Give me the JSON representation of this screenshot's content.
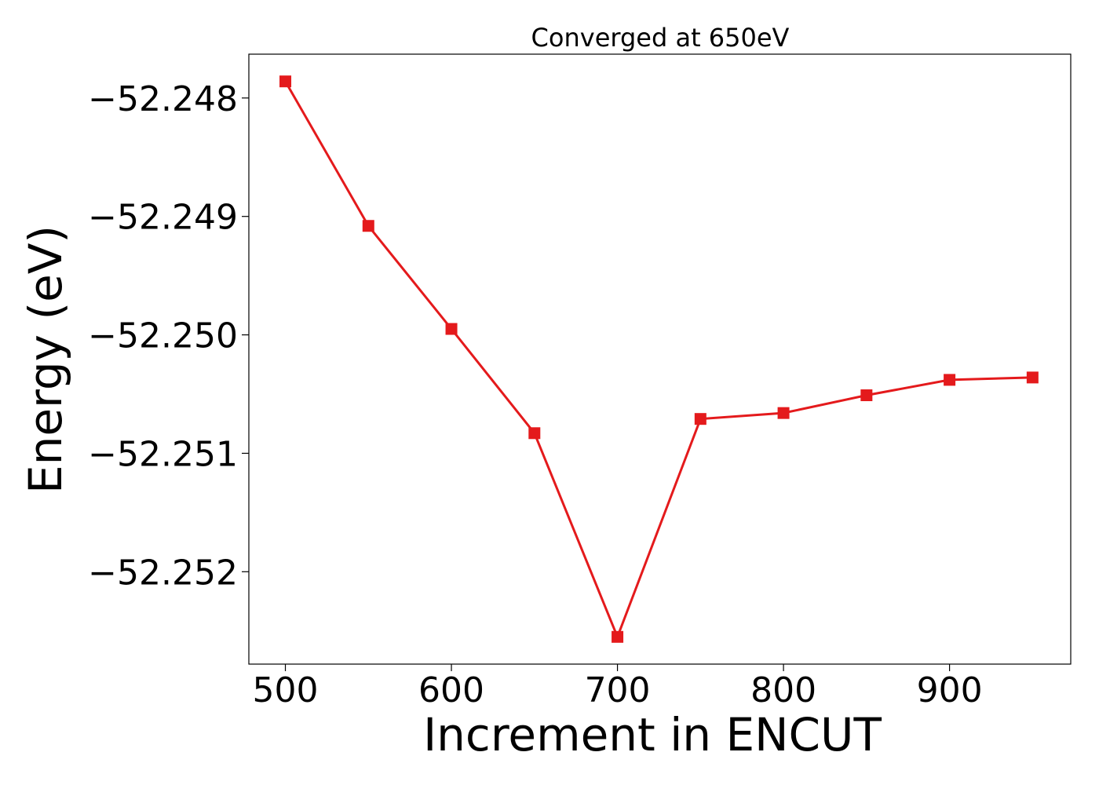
{
  "chart_data": {
    "type": "line",
    "title": "Converged at 650eV",
    "xlabel": "Increment in ENCUT",
    "ylabel": "Energy (eV)",
    "x": [
      500,
      550,
      600,
      650,
      700,
      750,
      800,
      850,
      900,
      950
    ],
    "series": [
      {
        "values": [
          -52.24786,
          -52.24908,
          -52.24995,
          -52.25083,
          -52.25255,
          -52.25071,
          -52.25066,
          -52.25051,
          -52.25038,
          -52.25036
        ],
        "color": "#e41a1c",
        "marker": "square"
      }
    ],
    "xlim": [
      478,
      973
    ],
    "ylim": [
      -52.25278,
      -52.24763
    ],
    "xticks": [
      500,
      600,
      700,
      800,
      900
    ],
    "xtick_labels": [
      "500",
      "600",
      "700",
      "800",
      "900"
    ],
    "yticks": [
      -52.248,
      -52.249,
      -52.25,
      -52.251,
      -52.252
    ],
    "ytick_labels": [
      "−52.248",
      "−52.249",
      "−52.250",
      "−52.251",
      "−52.252"
    ],
    "grid": false,
    "legend": "none"
  }
}
